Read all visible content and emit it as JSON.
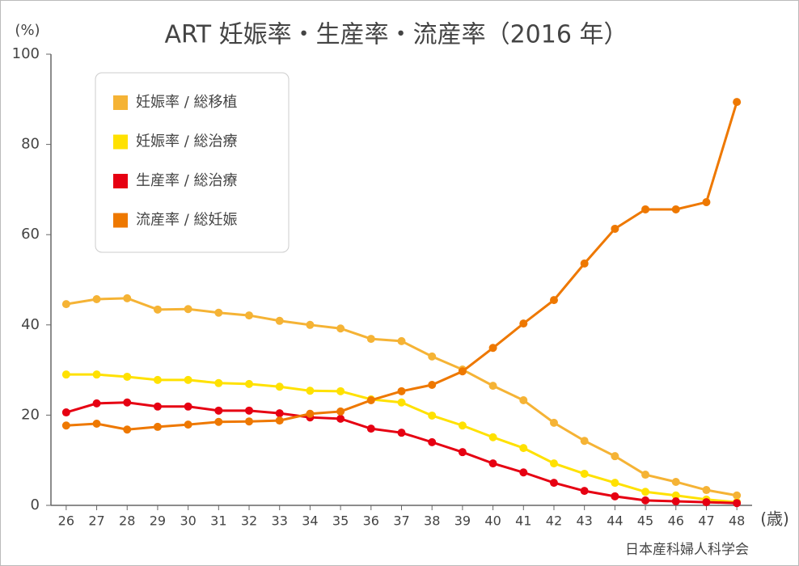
{
  "chart_data": {
    "type": "line",
    "title": "ART 妊娠率・生産率・流産率（2016 年）",
    "y_label": "(%)",
    "x_label": "(歳)",
    "source": "日本産科婦人科学会",
    "x": [
      26,
      27,
      28,
      29,
      30,
      31,
      32,
      33,
      34,
      35,
      36,
      37,
      38,
      39,
      40,
      41,
      42,
      43,
      44,
      45,
      46,
      47,
      48
    ],
    "xlim": [
      25.5,
      48.5
    ],
    "xticks": [
      26,
      27,
      28,
      29,
      30,
      31,
      32,
      33,
      34,
      35,
      36,
      37,
      38,
      39,
      40,
      41,
      42,
      43,
      44,
      45,
      46,
      47,
      48
    ],
    "ylim": [
      0,
      100
    ],
    "yticks": [
      0,
      20,
      40,
      60,
      80,
      100
    ],
    "grid": false,
    "legend": "upper left",
    "series": [
      {
        "name": "妊娠率 / 総移植",
        "color": "#f5b335",
        "values": [
          44.6,
          45.7,
          45.9,
          43.4,
          43.5,
          42.7,
          42.1,
          40.9,
          40.0,
          39.2,
          36.9,
          36.4,
          33.0,
          30.1,
          26.5,
          23.3,
          18.3,
          14.3,
          10.9,
          6.8,
          5.2,
          3.4,
          2.2
        ]
      },
      {
        "name": "妊娠率 / 総治療",
        "color": "#ffe100",
        "values": [
          29.0,
          29.0,
          28.5,
          27.8,
          27.8,
          27.1,
          26.9,
          26.3,
          25.4,
          25.3,
          23.5,
          22.8,
          19.9,
          17.7,
          15.1,
          12.7,
          9.3,
          7.0,
          5.0,
          3.0,
          2.2,
          1.3,
          0.7
        ]
      },
      {
        "name": "生産率 / 総治療",
        "color": "#e60012",
        "values": [
          20.6,
          22.6,
          22.8,
          21.9,
          21.9,
          21.0,
          21.0,
          20.4,
          19.5,
          19.2,
          17.0,
          16.1,
          14.0,
          11.8,
          9.3,
          7.3,
          5.0,
          3.2,
          2.0,
          1.1,
          0.9,
          0.7,
          0.5
        ]
      },
      {
        "name": "流産率 / 総妊娠",
        "color": "#ee7800",
        "values": [
          17.7,
          18.1,
          16.8,
          17.4,
          17.9,
          18.5,
          18.6,
          18.8,
          20.3,
          20.8,
          23.3,
          25.3,
          26.7,
          29.7,
          34.9,
          40.3,
          45.5,
          53.6,
          61.3,
          65.6,
          65.6,
          67.2,
          89.4
        ]
      }
    ]
  }
}
